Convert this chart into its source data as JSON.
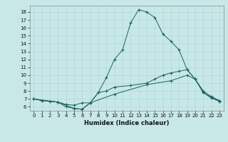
{
  "xlabel": "Humidex (Indice chaleur)",
  "bg_color": "#c8e8e8",
  "grid_color": "#b0d8d8",
  "line_color": "#1a6060",
  "xlim": [
    -0.5,
    23.5
  ],
  "ylim": [
    5.5,
    18.8
  ],
  "xticks": [
    0,
    1,
    2,
    3,
    4,
    5,
    6,
    7,
    8,
    9,
    10,
    11,
    12,
    13,
    14,
    15,
    16,
    17,
    18,
    19,
    20,
    21,
    22,
    23
  ],
  "yticks": [
    6,
    7,
    8,
    9,
    10,
    11,
    12,
    13,
    14,
    15,
    16,
    17,
    18
  ],
  "curve1_x": [
    0,
    1,
    2,
    3,
    4,
    5,
    6,
    7,
    8,
    9,
    10,
    11,
    12,
    13,
    14,
    15,
    16,
    17,
    18,
    19,
    20,
    21,
    22,
    23
  ],
  "curve1_y": [
    7.0,
    6.8,
    6.7,
    6.6,
    6.3,
    6.2,
    6.5,
    6.5,
    7.8,
    9.7,
    12.0,
    13.2,
    16.6,
    18.3,
    18.0,
    17.3,
    15.2,
    14.3,
    13.2,
    10.7,
    9.5,
    8.0,
    7.3,
    6.8
  ],
  "curve2_x": [
    0,
    1,
    3,
    4,
    5,
    6,
    7,
    8,
    9,
    10,
    12,
    14,
    15,
    16,
    17,
    18,
    19,
    20,
    21,
    22,
    23
  ],
  "curve2_y": [
    7.0,
    6.8,
    6.6,
    6.0,
    5.8,
    5.7,
    6.5,
    7.8,
    8.0,
    8.5,
    8.7,
    9.0,
    9.5,
    10.0,
    10.3,
    10.5,
    10.7,
    9.5,
    7.8,
    7.2,
    6.7
  ],
  "curve3_x": [
    0,
    3,
    5,
    6,
    7,
    10,
    14,
    17,
    19,
    20,
    21,
    22,
    23
  ],
  "curve3_y": [
    7.0,
    6.6,
    5.8,
    5.7,
    6.5,
    7.6,
    8.8,
    9.3,
    10.0,
    9.5,
    7.8,
    7.1,
    6.7
  ],
  "xlabel_fontsize": 6,
  "tick_fontsize": 5
}
